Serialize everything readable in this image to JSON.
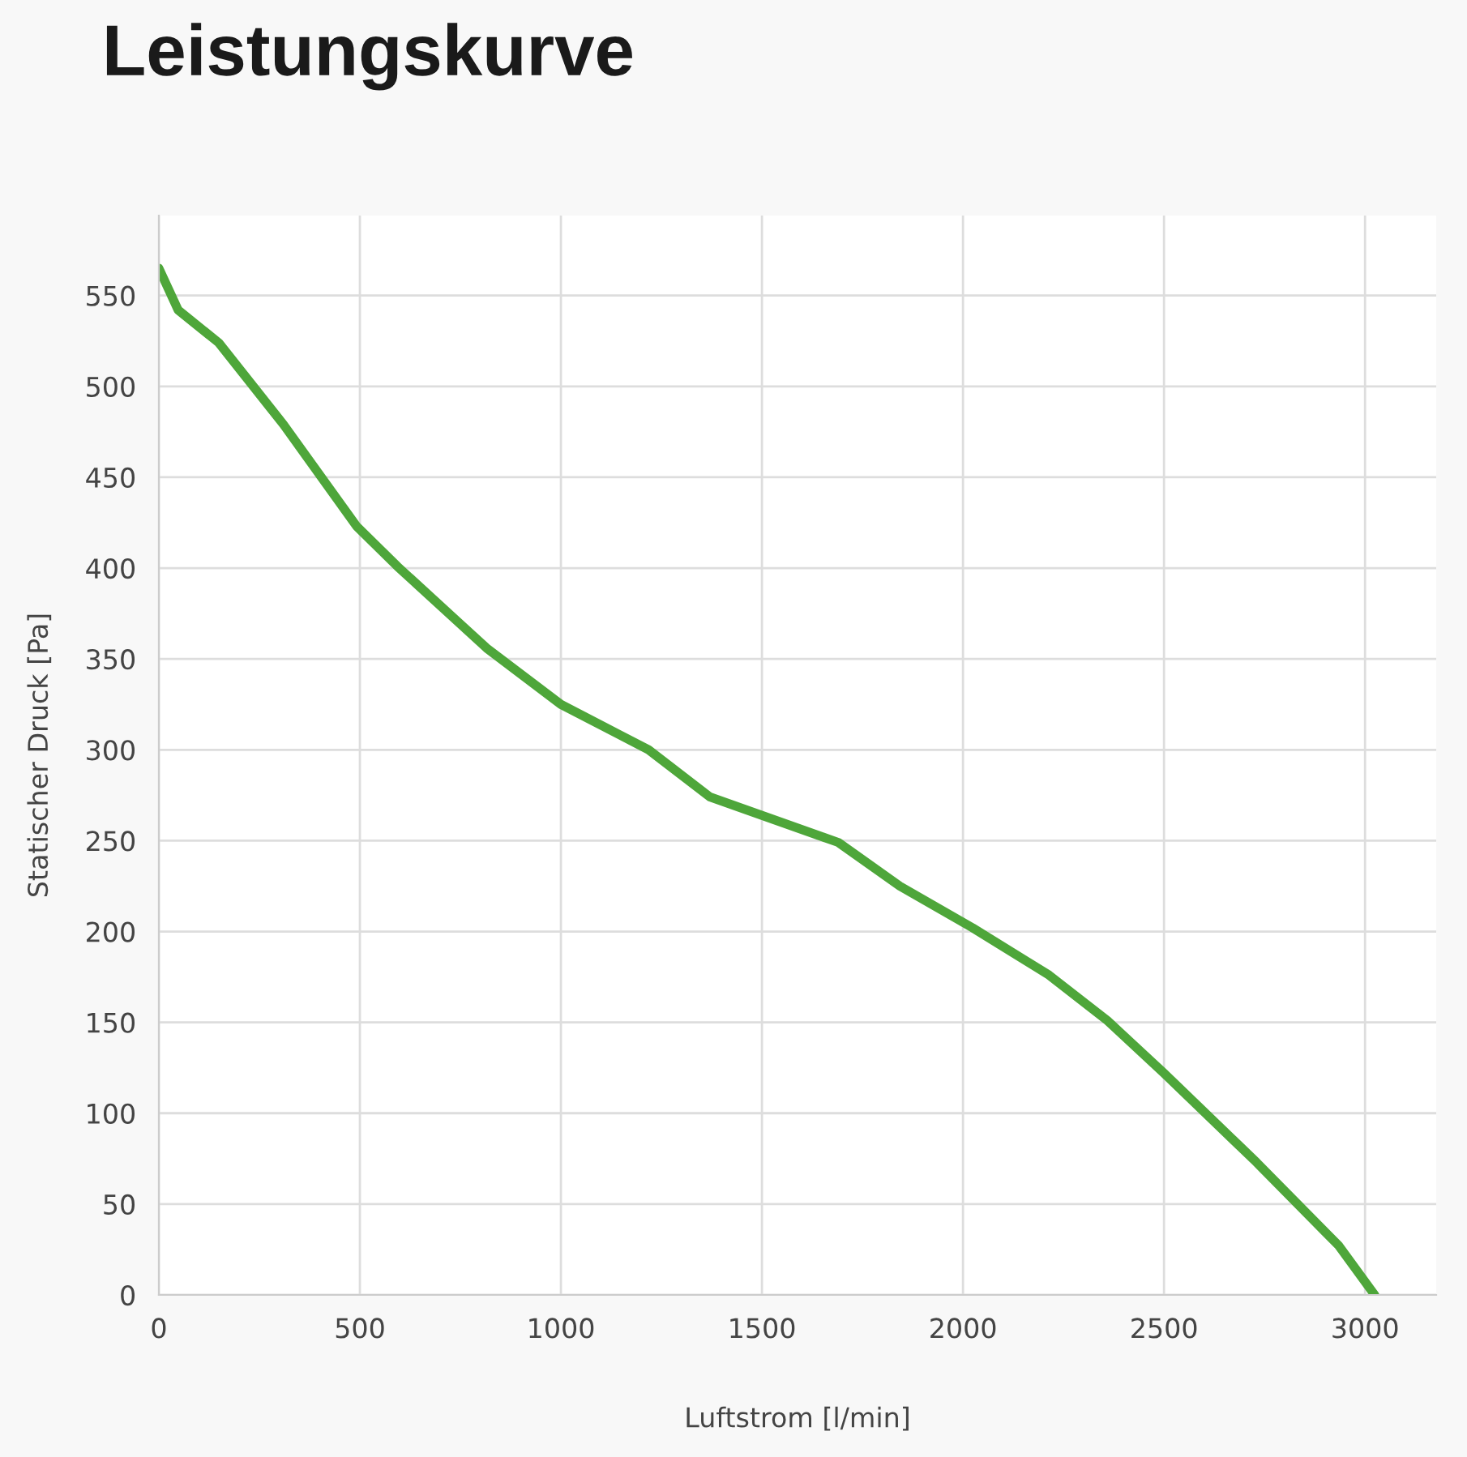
{
  "chart_data": {
    "type": "line",
    "title": "Leistungskurve",
    "xlabel": "Luftstrom [l/min]",
    "ylabel": "Statischer Druck [Pa]",
    "x": [
      0,
      48,
      149,
      310,
      492,
      593,
      815,
      1000,
      1218,
      1371,
      1690,
      1843,
      2024,
      2214,
      2359,
      2500,
      2730,
      2935,
      3024
    ],
    "series": [
      {
        "color": "#4ea63a",
        "values": [
          565,
          542,
          524,
          479,
          423,
          401,
          356,
          325,
          300,
          274,
          249,
          225,
          202,
          176,
          151,
          122,
          73,
          27,
          0
        ]
      }
    ],
    "xlim": [
      0,
      3177
    ],
    "ylim": [
      0,
      594
    ],
    "xticks": [
      0,
      500,
      1000,
      1500,
      2000,
      2500,
      3000
    ],
    "yticks": [
      0,
      50,
      100,
      150,
      200,
      250,
      300,
      350,
      400,
      450,
      500,
      550
    ],
    "grid": true,
    "legend": false,
    "marker": "none",
    "line_style": "solid"
  }
}
